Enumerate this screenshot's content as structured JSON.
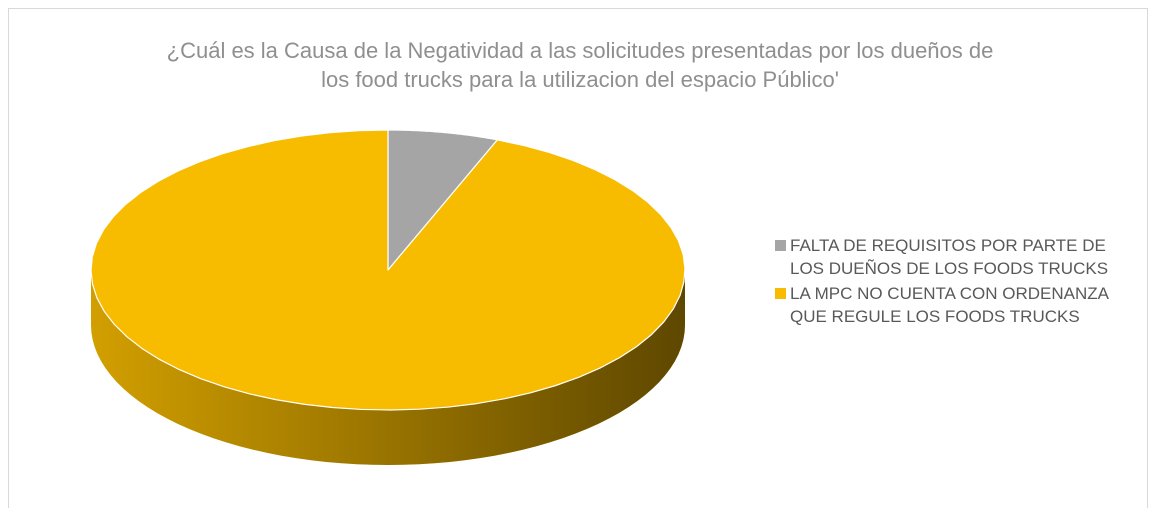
{
  "chart_data": {
    "type": "pie3d",
    "title": "¿Cuál es la Causa de la Negatividad a las solicitudes presentadas por los dueños de los food trucks para la utilizacion del espacio Público'",
    "series": [
      {
        "name": "FALTA DE REQUISITOS POR PARTE DE LOS DUEÑOS DE LOS FOODS TRUCKS",
        "color": "#a5a5a5"
      },
      {
        "name": "LA MPC NO CUENTA CON ORDENANZA QUE REGULE LOS FOODS TRUCKS",
        "color": "#f7bb00"
      }
    ],
    "values": [
      6,
      94
    ],
    "legend": "right"
  }
}
